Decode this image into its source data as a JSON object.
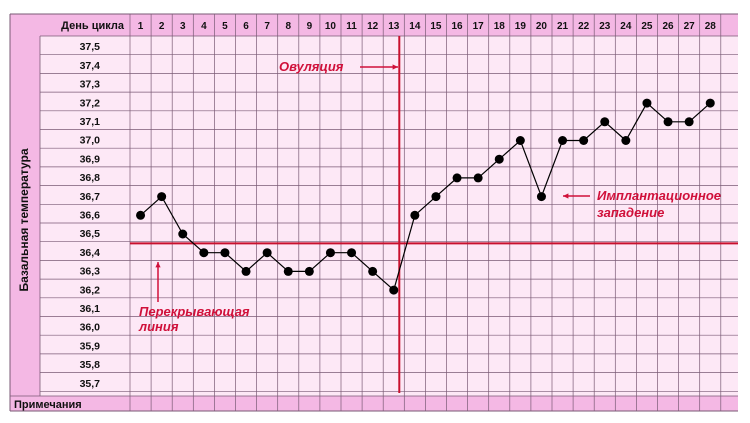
{
  "chart_data": {
    "type": "line",
    "title": "",
    "x_header": "День цикла",
    "ylabel": "Базальная температура",
    "footer_label": "Примечания",
    "x": [
      1,
      2,
      3,
      4,
      5,
      6,
      7,
      8,
      9,
      10,
      11,
      12,
      13,
      14,
      15,
      16,
      17,
      18,
      19,
      20,
      21,
      22,
      23,
      24,
      25,
      26,
      27,
      28
    ],
    "y_ticks": [
      "37,5",
      "37,4",
      "37,3",
      "37,2",
      "37,1",
      "37,0",
      "36,9",
      "36,8",
      "36,7",
      "36,6",
      "36,5",
      "36,4",
      "36,3",
      "36,2",
      "36,1",
      "36,0",
      "35,9",
      "35,8",
      "35,7"
    ],
    "ylim": [
      35.7,
      37.5
    ],
    "grid": true,
    "series": [
      {
        "values": [
          36.6,
          36.7,
          36.5,
          36.4,
          36.4,
          36.3,
          36.4,
          36.3,
          36.3,
          36.4,
          36.4,
          36.3,
          36.2,
          36.6,
          36.7,
          36.8,
          36.8,
          36.9,
          37.0,
          36.7,
          37.0,
          37.0,
          37.1,
          37.0,
          37.2,
          37.1,
          37.1,
          37.2
        ]
      }
    ],
    "coverline_value": 36.45,
    "ovulation_day": 13,
    "annotations": {
      "ovulation": "Овуляция",
      "coverline": [
        "Перекрывающая",
        "линия"
      ],
      "implantation": [
        "Имплантационное",
        "западение"
      ]
    },
    "colors": {
      "line_accent": "#c8102e",
      "annotation_text": "#d0103a",
      "header_bg": "#f4b8e4",
      "body_bg": "#fde8f6",
      "grid": "#7a5a75"
    }
  }
}
